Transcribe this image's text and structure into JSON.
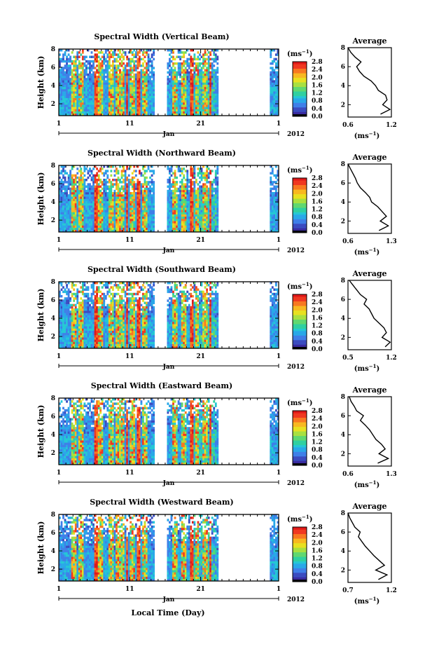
{
  "figure": {
    "bottom_xlabel": "Local Time (Day)",
    "year": "2012",
    "month": "Jan",
    "ylabel": "Height (km)",
    "colorbar_unit": "(ms",
    "colorbar_unit_exp": "−1",
    "avg_xunit": "(ms",
    "avg_xunit_exp": "−1",
    "avg_title": "Average"
  },
  "colors": {
    "colormap": [
      "#ffffff",
      "#000000",
      "#3a2ca0",
      "#3b4cc0",
      "#3f7fe8",
      "#29a8e8",
      "#25c8d4",
      "#30d0a0",
      "#60d870",
      "#a8e040",
      "#e8e020",
      "#f8b820",
      "#f87820",
      "#f03820",
      "#e01818"
    ]
  },
  "chart_data": [
    {
      "type": "heatmap",
      "title": "Spectral Width (Vertical Beam)",
      "x_ticks": [
        "1",
        "11",
        "21",
        "1"
      ],
      "xlim_days": [
        1,
        32
      ],
      "y_ticks": [
        "2",
        "4",
        "6",
        "8"
      ],
      "ylim_km": [
        0.7,
        8.0
      ],
      "colorbar_ticks": [
        "0.0",
        "0.4",
        "0.8",
        "1.2",
        "1.6",
        "2.0",
        "2.4",
        "2.8"
      ],
      "colorbar_range": [
        0.0,
        2.8
      ],
      "data_gap_days": [
        14.5,
        16.3
      ],
      "data_gap2_days": [
        23.5,
        30.8
      ],
      "average_profile": {
        "xlim": [
          0.6,
          1.2
        ],
        "x_ticks": [
          "0.6",
          "1.2"
        ],
        "height_km": [
          1.0,
          1.5,
          2.0,
          2.5,
          3.0,
          3.5,
          4.0,
          4.5,
          5.0,
          5.5,
          6.0,
          6.5,
          7.0,
          7.5,
          8.0
        ],
        "width_ms": [
          1.05,
          1.18,
          1.08,
          1.14,
          1.12,
          1.02,
          0.98,
          0.92,
          0.82,
          0.76,
          0.72,
          0.78,
          0.7,
          0.64,
          0.6
        ]
      }
    },
    {
      "type": "heatmap",
      "title": "Spectral Width (Northward Beam)",
      "x_ticks": [
        "1",
        "11",
        "21",
        "1"
      ],
      "xlim_days": [
        1,
        32
      ],
      "y_ticks": [
        "2",
        "4",
        "6",
        "8"
      ],
      "ylim_km": [
        0.7,
        8.0
      ],
      "colorbar_ticks": [
        "0.0",
        "0.4",
        "0.8",
        "1.2",
        "1.6",
        "2.0",
        "2.4",
        "2.8"
      ],
      "colorbar_range": [
        0.0,
        2.8
      ],
      "data_gap_days": [
        14.5,
        16.3
      ],
      "data_gap2_days": [
        23.5,
        30.8
      ],
      "average_profile": {
        "xlim": [
          0.6,
          1.3
        ],
        "x_ticks": [
          "0.6",
          "1.3"
        ],
        "height_km": [
          1.0,
          1.5,
          2.0,
          2.5,
          3.0,
          3.5,
          4.0,
          4.5,
          5.0,
          5.5,
          6.0,
          6.5,
          7.0,
          7.5,
          8.0
        ],
        "width_ms": [
          1.1,
          1.25,
          1.12,
          1.22,
          1.15,
          1.08,
          0.98,
          0.95,
          0.88,
          0.8,
          0.75,
          0.72,
          0.68,
          0.64,
          0.6
        ]
      }
    },
    {
      "type": "heatmap",
      "title": "Spectral Width (Southward Beam)",
      "x_ticks": [
        "1",
        "11",
        "21",
        "1"
      ],
      "xlim_days": [
        1,
        32
      ],
      "y_ticks": [
        "2",
        "4",
        "6",
        "8"
      ],
      "ylim_km": [
        0.7,
        8.0
      ],
      "colorbar_ticks": [
        "0.0",
        "0.4",
        "0.8",
        "1.2",
        "1.6",
        "2.0",
        "2.4",
        "2.8"
      ],
      "colorbar_range": [
        0.0,
        2.8
      ],
      "data_gap_days": [
        14.5,
        16.3
      ],
      "data_gap2_days": [
        23.5,
        30.8
      ],
      "average_profile": {
        "xlim": [
          0.5,
          1.2
        ],
        "x_ticks": [
          "0.5",
          "1.2"
        ],
        "height_km": [
          1.0,
          1.5,
          2.0,
          2.5,
          3.0,
          3.5,
          4.0,
          4.5,
          5.0,
          5.5,
          6.0,
          6.5,
          7.0,
          7.5,
          8.0
        ],
        "width_ms": [
          1.1,
          1.18,
          1.05,
          1.12,
          1.08,
          1.0,
          0.92,
          0.88,
          0.84,
          0.76,
          0.8,
          0.7,
          0.64,
          0.58,
          0.52
        ]
      }
    },
    {
      "type": "heatmap",
      "title": "Spectral Width (Eastward Beam)",
      "x_ticks": [
        "1",
        "11",
        "21",
        "1"
      ],
      "xlim_days": [
        1,
        32
      ],
      "y_ticks": [
        "2",
        "4",
        "6",
        "8"
      ],
      "ylim_km": [
        0.7,
        8.0
      ],
      "colorbar_ticks": [
        "0.0",
        "0.4",
        "0.8",
        "1.2",
        "1.6",
        "2.0",
        "2.4",
        "2.8"
      ],
      "colorbar_range": [
        0.0,
        2.8
      ],
      "data_gap_days": [
        14.5,
        16.3
      ],
      "data_gap2_days": [
        23.5,
        30.8
      ],
      "average_profile": {
        "xlim": [
          0.6,
          1.3
        ],
        "x_ticks": [
          "0.6",
          "1.3"
        ],
        "height_km": [
          1.0,
          1.5,
          2.0,
          2.5,
          3.0,
          3.5,
          4.0,
          4.5,
          5.0,
          5.5,
          6.0,
          6.5,
          7.0,
          7.5,
          8.0
        ],
        "width_ms": [
          1.08,
          1.25,
          1.1,
          1.2,
          1.14,
          1.05,
          1.0,
          0.95,
          0.88,
          0.8,
          0.85,
          0.74,
          0.7,
          0.65,
          0.62
        ]
      }
    },
    {
      "type": "heatmap",
      "title": "Spectral Width (Westward Beam)",
      "x_ticks": [
        "1",
        "11",
        "21",
        "1"
      ],
      "xlim_days": [
        1,
        32
      ],
      "y_ticks": [
        "2",
        "4",
        "6",
        "8"
      ],
      "ylim_km": [
        0.7,
        8.0
      ],
      "colorbar_ticks": [
        "0.0",
        "0.4",
        "0.8",
        "1.2",
        "1.6",
        "2.0",
        "2.4",
        "2.8"
      ],
      "colorbar_range": [
        0.0,
        2.8
      ],
      "data_gap_days": [
        14.5,
        16.3
      ],
      "data_gap2_days": [
        23.5,
        30.8
      ],
      "average_profile": {
        "xlim": [
          0.7,
          1.2
        ],
        "x_ticks": [
          "0.7",
          "1.2"
        ],
        "height_km": [
          1.0,
          1.5,
          2.0,
          2.5,
          3.0,
          3.5,
          4.0,
          4.5,
          5.0,
          5.5,
          6.0,
          6.5,
          7.0,
          7.5,
          8.0
        ],
        "width_ms": [
          1.05,
          1.15,
          1.02,
          1.12,
          1.06,
          1.0,
          0.95,
          0.9,
          0.86,
          0.82,
          0.84,
          0.78,
          0.75,
          0.72,
          0.7
        ]
      }
    }
  ]
}
